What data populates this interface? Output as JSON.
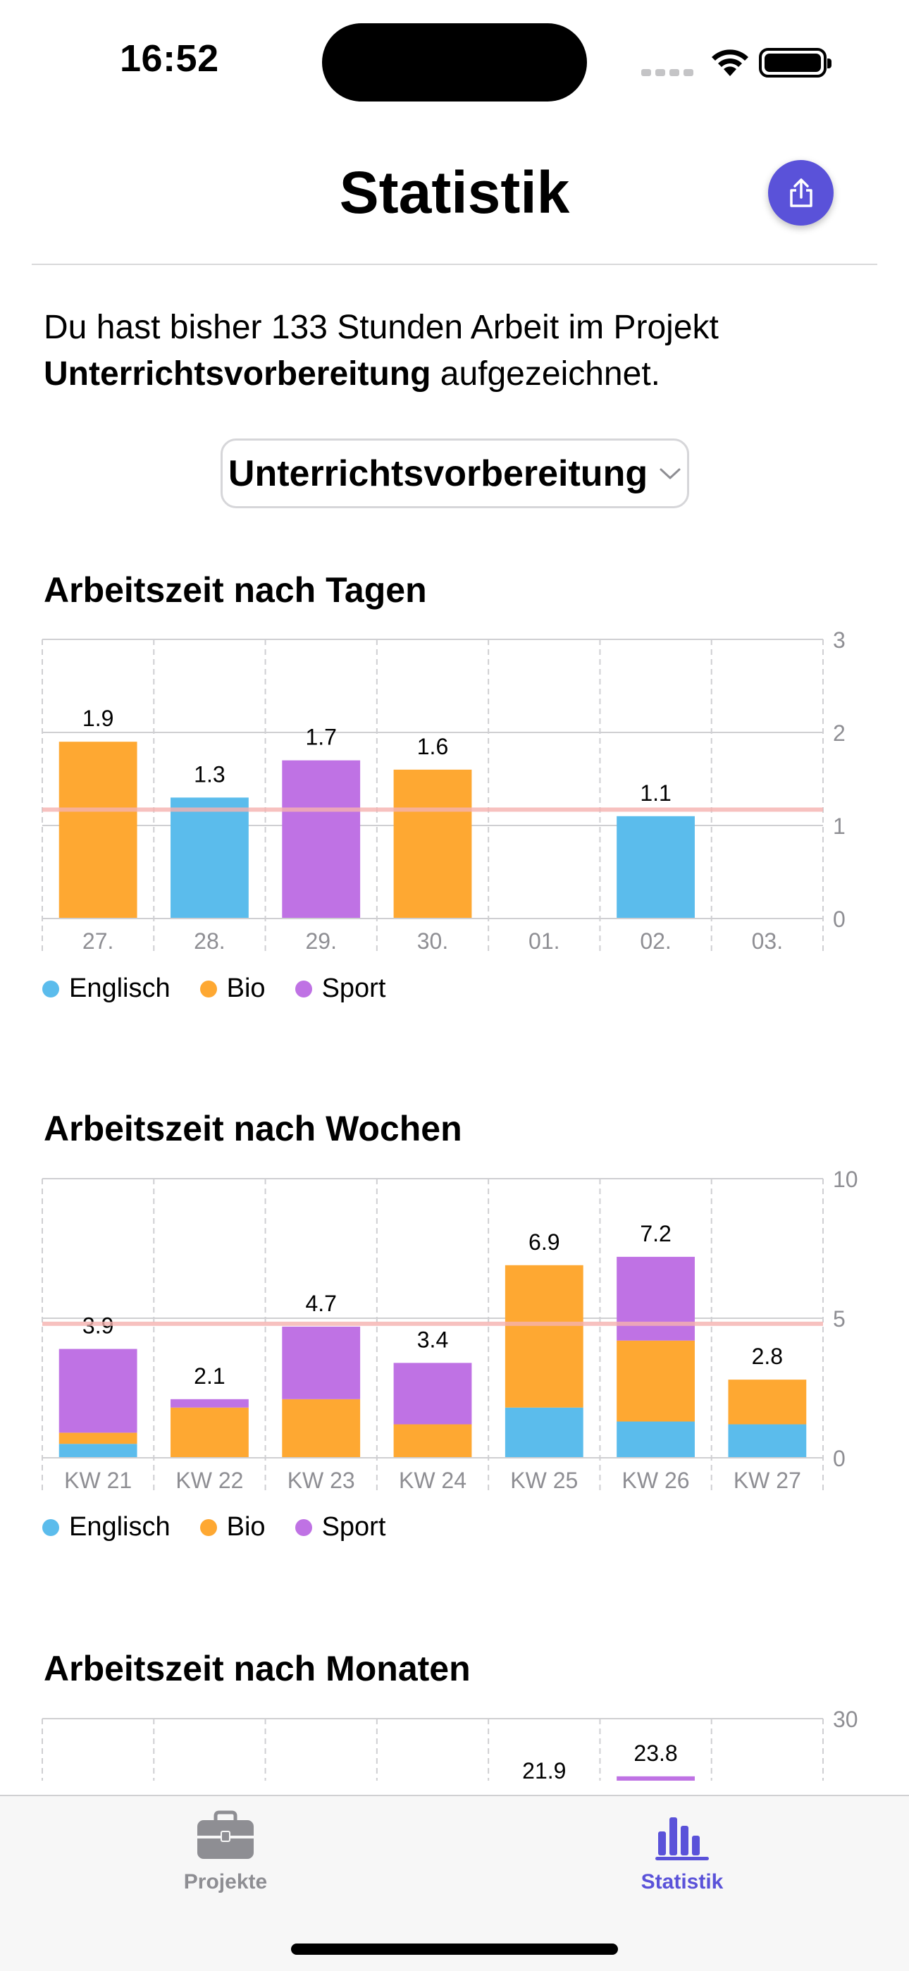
{
  "status_bar": {
    "time": "16:52"
  },
  "nav": {
    "title": "Statistik",
    "share_icon": "share-icon"
  },
  "intro": {
    "prefix": "Du hast bisher 133 Stunden Arbeit im Projekt ",
    "project": "Unterrichtsvorbereitung",
    "suffix": " aufgezeichnet."
  },
  "picker": {
    "selected": "Unterrichtsvorbereitung"
  },
  "colors": {
    "englisch": "#5bbcec",
    "bio": "#fea832",
    "sport": "#bf72e4",
    "accent": "#5a52d9",
    "average": "#f6b2b0"
  },
  "sections": {
    "days": "Arbeitszeit nach Tagen",
    "weeks": "Arbeitszeit nach Wochen",
    "months": "Arbeitszeit nach Monaten"
  },
  "legend": {
    "englisch": "Englisch",
    "bio": "Bio",
    "sport": "Sport"
  },
  "chart_data": [
    {
      "id": "days",
      "type": "bar",
      "stacked": true,
      "title": "Arbeitszeit nach Tagen",
      "categories": [
        "27.",
        "28.",
        "29.",
        "30.",
        "01.",
        "02.",
        "03."
      ],
      "series": [
        {
          "name": "Englisch",
          "values": [
            0,
            1.3,
            0,
            0,
            0,
            1.1,
            0
          ]
        },
        {
          "name": "Bio",
          "values": [
            1.9,
            0,
            0,
            1.6,
            0,
            0,
            0
          ]
        },
        {
          "name": "Sport",
          "values": [
            0,
            0,
            1.7,
            0,
            0,
            0,
            0
          ]
        }
      ],
      "totals": [
        "1.9",
        "1.3",
        "1.7",
        "1.6",
        "",
        "1.1",
        ""
      ],
      "yticks": [
        "0",
        "1",
        "2",
        "3"
      ],
      "ylim": [
        0,
        3
      ],
      "average": 1.17
    },
    {
      "id": "weeks",
      "type": "bar",
      "stacked": true,
      "title": "Arbeitszeit nach Wochen",
      "categories": [
        "KW 21",
        "KW 22",
        "KW 23",
        "KW 24",
        "KW 25",
        "KW 26",
        "KW 27"
      ],
      "series": [
        {
          "name": "Englisch",
          "values": [
            0.5,
            0,
            0,
            0,
            1.8,
            1.3,
            1.2
          ]
        },
        {
          "name": "Bio",
          "values": [
            0.4,
            1.8,
            2.1,
            1.2,
            5.1,
            2.9,
            1.6
          ]
        },
        {
          "name": "Sport",
          "values": [
            3.0,
            0.3,
            2.6,
            2.2,
            0,
            3.0,
            0
          ]
        }
      ],
      "totals": [
        "3.9",
        "2.1",
        "4.7",
        "3.4",
        "6.9",
        "7.2",
        "2.8"
      ],
      "yticks": [
        "0",
        "5",
        "10"
      ],
      "ylim": [
        0,
        10
      ],
      "average": 4.8
    },
    {
      "id": "months",
      "type": "bar",
      "stacked": true,
      "title": "Arbeitszeit nach Monaten",
      "categories": [
        "",
        "",
        "",
        "",
        "",
        "",
        ""
      ],
      "series": [
        {
          "name": "Englisch",
          "values": [
            0,
            0,
            0,
            0,
            0,
            0,
            0
          ]
        },
        {
          "name": "Bio",
          "values": [
            0,
            0,
            0,
            0,
            21.9,
            0,
            0
          ]
        },
        {
          "name": "Sport",
          "values": [
            0,
            0,
            0,
            0,
            0,
            23.8,
            0
          ]
        }
      ],
      "totals": [
        "",
        "",
        "",
        "",
        "21.9",
        "23.8",
        ""
      ],
      "yticks": [
        "30"
      ],
      "ylim": [
        0,
        30
      ]
    }
  ],
  "tabbar": {
    "projekte": "Projekte",
    "statistik": "Statistik"
  }
}
